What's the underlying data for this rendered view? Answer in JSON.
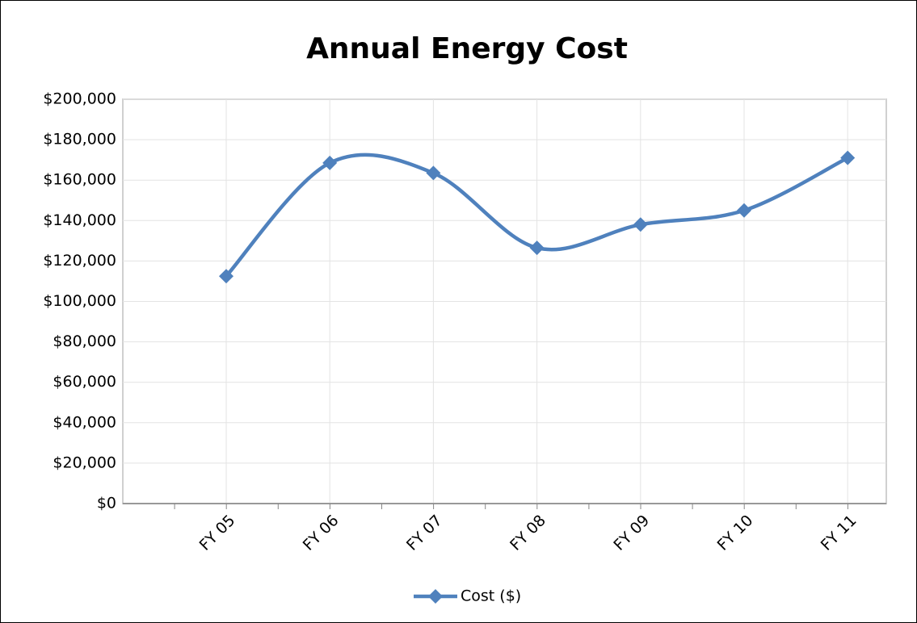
{
  "chart_data": {
    "type": "line",
    "title": "Annual Energy Cost",
    "categories": [
      "FY 05",
      "FY 06",
      "FY 07",
      "FY 08",
      "FY 09",
      "FY 10",
      "FY 11"
    ],
    "series": [
      {
        "name": "Cost ($)",
        "color": "#4f81bd",
        "values": [
          112500,
          168500,
          163500,
          126500,
          138000,
          145000,
          171000
        ]
      }
    ],
    "ylim": [
      0,
      200000
    ],
    "yticks": [
      {
        "value": 0,
        "label": "$0"
      },
      {
        "value": 20000,
        "label": "$20,000"
      },
      {
        "value": 40000,
        "label": "$40,000"
      },
      {
        "value": 60000,
        "label": "$60,000"
      },
      {
        "value": 80000,
        "label": "$80,000"
      },
      {
        "value": 100000,
        "label": "$100,000"
      },
      {
        "value": 120000,
        "label": "$120,000"
      },
      {
        "value": 140000,
        "label": "$140,000"
      },
      {
        "value": 160000,
        "label": "$160,000"
      },
      {
        "value": 180000,
        "label": "$180,000"
      },
      {
        "value": 200000,
        "label": "$200,000"
      }
    ],
    "grid": true,
    "smooth": true,
    "legend": "bottom"
  }
}
